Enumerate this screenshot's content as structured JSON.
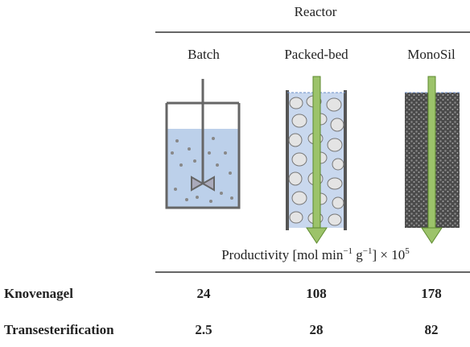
{
  "header": {
    "title": "Reactor",
    "columns": [
      "Batch",
      "Packed-bed",
      "MonoSil"
    ]
  },
  "productivity_label": {
    "parts": [
      "Productivity [mol min",
      "−1",
      " g",
      "−1",
      "] × 10",
      "5"
    ]
  },
  "table": {
    "rows": [
      [
        "Knovenagel",
        24,
        108,
        178
      ],
      [
        "Transesterification",
        2.5,
        28,
        82
      ]
    ]
  }
}
